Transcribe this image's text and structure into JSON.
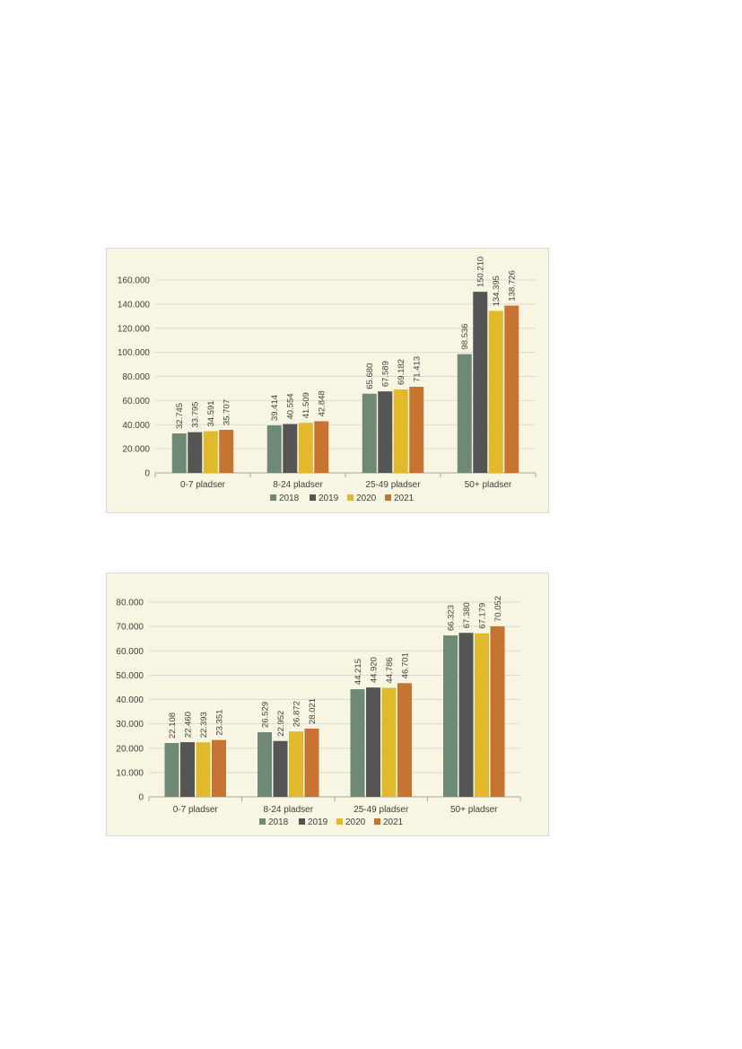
{
  "colors": {
    "2018": "#6e8a76",
    "2019": "#555555",
    "2020": "#e3b92c",
    "2021": "#c77332",
    "grid": "#d9d9d9",
    "axis": "#a6a6a6"
  },
  "chart_data": [
    {
      "type": "bar",
      "categories": [
        "0-7 pladser",
        "8-24 pladser",
        "25-49 pladser",
        "50+ pladser"
      ],
      "series": [
        {
          "name": "2018",
          "values": [
            32745,
            39414,
            65680,
            98536
          ],
          "labels": [
            "32.745",
            "39.414",
            "65.680",
            "98.536"
          ]
        },
        {
          "name": "2019",
          "values": [
            33795,
            40554,
            67589,
            150210
          ],
          "labels": [
            "33.795",
            "40.554",
            "67.589",
            "150.210"
          ]
        },
        {
          "name": "2020",
          "values": [
            34591,
            41509,
            69182,
            134395
          ],
          "labels": [
            "34.591",
            "41.509",
            "69.182",
            "134.395"
          ]
        },
        {
          "name": "2021",
          "values": [
            35707,
            42848,
            71413,
            138726
          ],
          "labels": [
            "35.707",
            "42.848",
            "71.413",
            "138.726"
          ]
        }
      ],
      "yticks": [
        0,
        20000,
        40000,
        60000,
        80000,
        100000,
        120000,
        140000,
        160000
      ],
      "ytick_labels": [
        "0",
        "20.000",
        "40.000",
        "60.000",
        "80.000",
        "100.000",
        "120.000",
        "140.000",
        "160.000"
      ],
      "ylim": [
        0,
        160000
      ],
      "grid": true,
      "legend": "bottom"
    },
    {
      "type": "bar",
      "categories": [
        "0-7 pladser",
        "8-24 pladser",
        "25-49 pladser",
        "50+ pladser"
      ],
      "series": [
        {
          "name": "2018",
          "values": [
            22108,
            26529,
            44215,
            66323
          ],
          "labels": [
            "22.108",
            "26.529",
            "44.215",
            "66.323"
          ]
        },
        {
          "name": "2019",
          "values": [
            22460,
            22952,
            44920,
            67380
          ],
          "labels": [
            "22.460",
            "22.952",
            "44.920",
            "67.380"
          ]
        },
        {
          "name": "2020",
          "values": [
            22393,
            26872,
            44786,
            67179
          ],
          "labels": [
            "22.393",
            "26.872",
            "44.786",
            "67.179"
          ]
        },
        {
          "name": "2021",
          "values": [
            23351,
            28021,
            46701,
            70052
          ],
          "labels": [
            "23.351",
            "28.021",
            "46.701",
            "70.052"
          ]
        }
      ],
      "yticks": [
        0,
        10000,
        20000,
        30000,
        40000,
        50000,
        60000,
        70000,
        80000
      ],
      "ytick_labels": [
        "0",
        "10.000",
        "20.000",
        "30.000",
        "40.000",
        "50.000",
        "60.000",
        "70.000",
        "80.000"
      ],
      "ylim": [
        0,
        80000
      ],
      "grid": true,
      "legend": "bottom"
    }
  ]
}
